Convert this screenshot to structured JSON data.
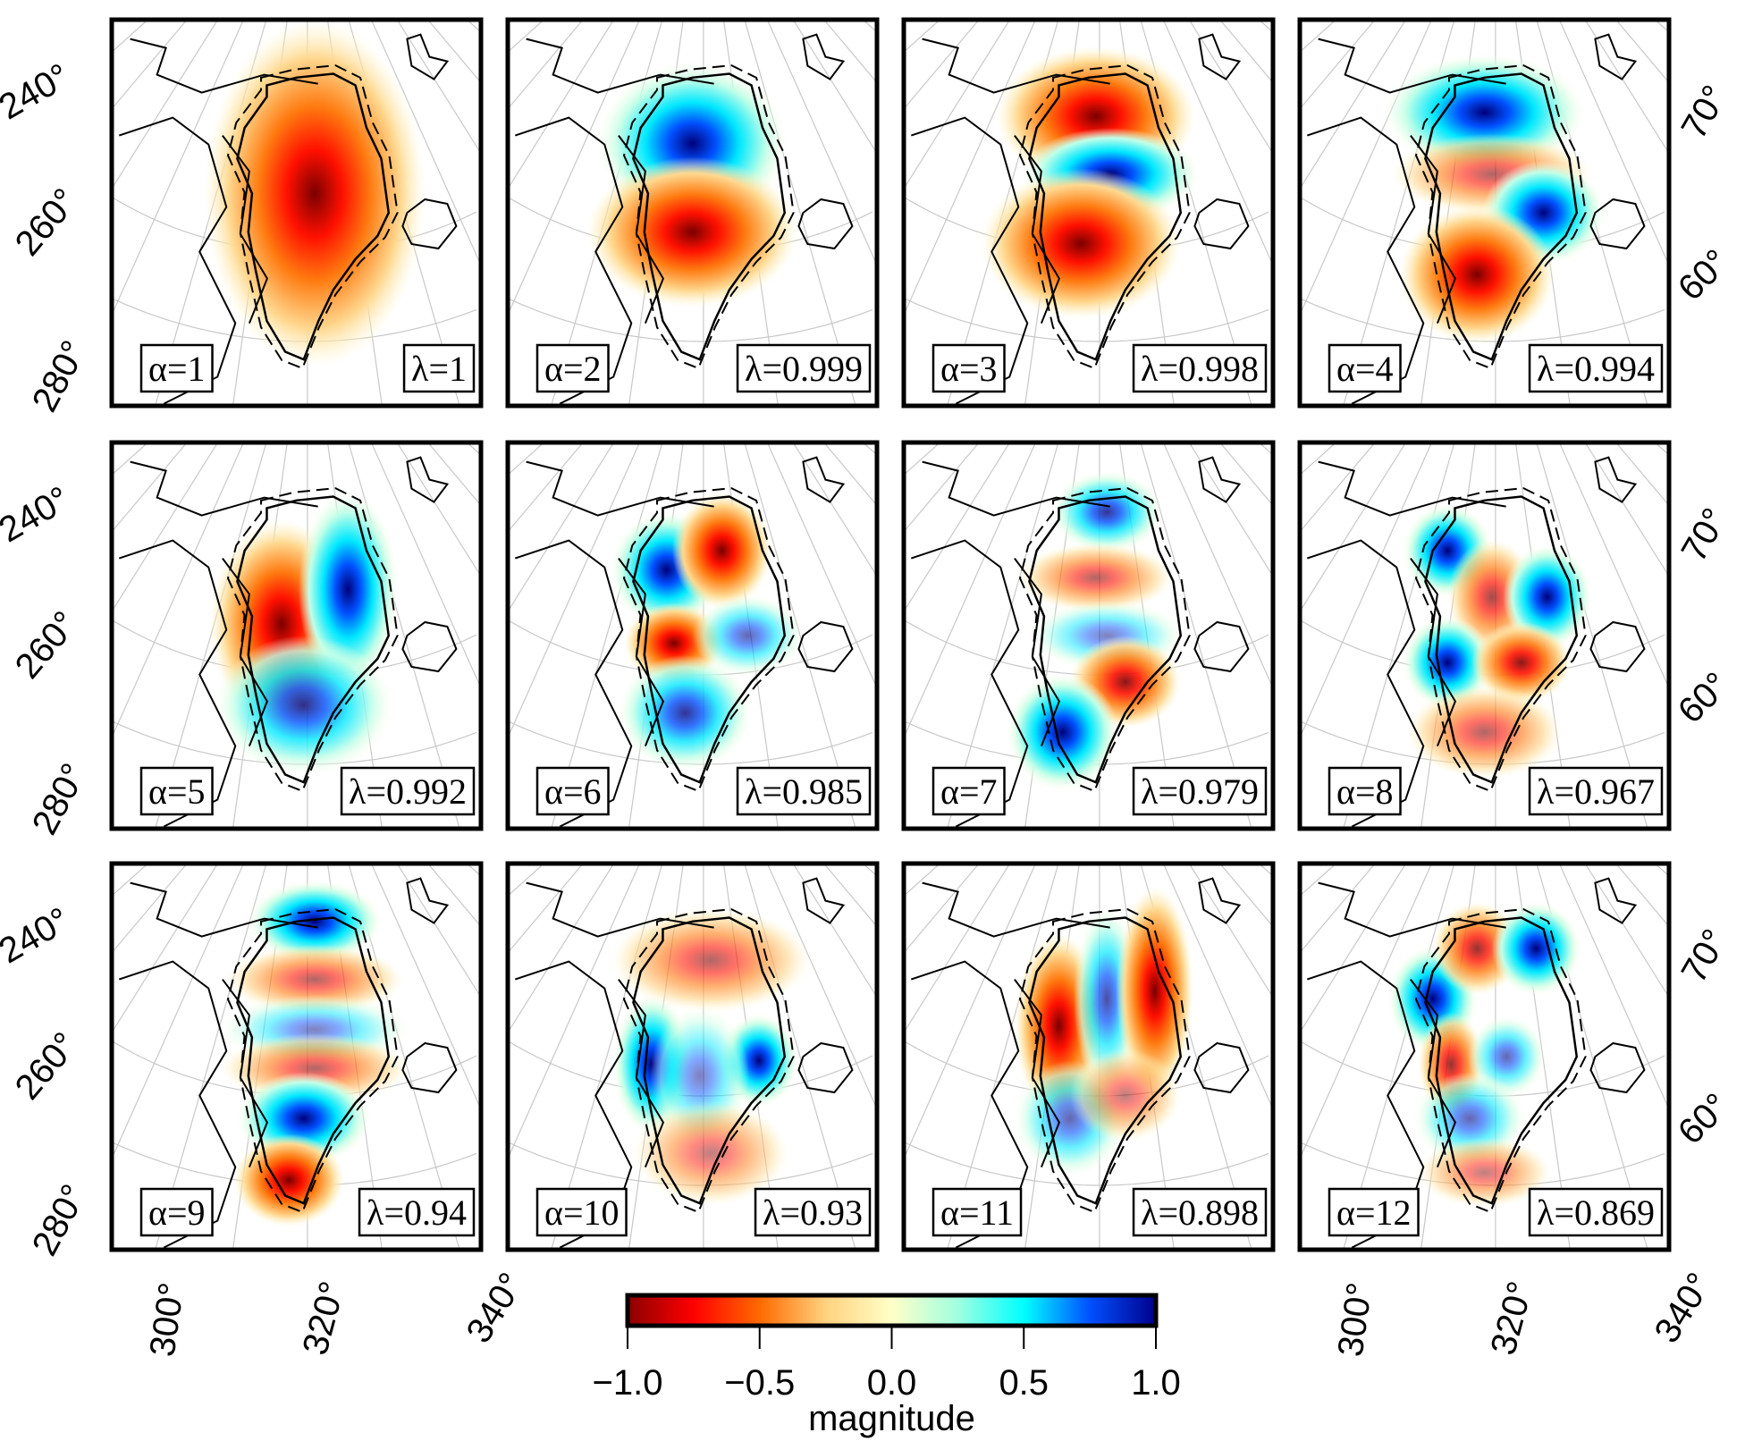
{
  "chart_data": {
    "type": "heatmap",
    "title": "",
    "panels": [
      {
        "alpha": "α=1",
        "lambda": "λ=1"
      },
      {
        "alpha": "α=2",
        "lambda": "λ=0.999"
      },
      {
        "alpha": "α=3",
        "lambda": "λ=0.998"
      },
      {
        "alpha": "α=4",
        "lambda": "λ=0.994"
      },
      {
        "alpha": "α=5",
        "lambda": "λ=0.992"
      },
      {
        "alpha": "α=6",
        "lambda": "λ=0.985"
      },
      {
        "alpha": "α=7",
        "lambda": "λ=0.979"
      },
      {
        "alpha": "α=8",
        "lambda": "λ=0.967"
      },
      {
        "alpha": "α=9",
        "lambda": "λ=0.94"
      },
      {
        "alpha": "α=10",
        "lambda": "λ=0.93"
      },
      {
        "alpha": "α=11",
        "lambda": "λ=0.898"
      },
      {
        "alpha": "α=12",
        "lambda": "λ=0.869"
      }
    ],
    "left_axis_labels": [
      "240°",
      "260°",
      "280°"
    ],
    "right_axis_labels": [
      "70°",
      "60°"
    ],
    "bottom_axis_labels": [
      "300°",
      "320°",
      "340°"
    ],
    "colorbar": {
      "label": "magnitude",
      "range": [
        -1.0,
        1.0
      ],
      "ticks": [
        "−1.0",
        "−0.5",
        "0.0",
        "0.5",
        "1.0"
      ],
      "colors": [
        "#8b0000",
        "#ff0000",
        "#ff6a00",
        "#ffd27f",
        "#ffffc8",
        "#a0ffe0",
        "#00ffff",
        "#0050ff",
        "#00008b"
      ]
    }
  }
}
